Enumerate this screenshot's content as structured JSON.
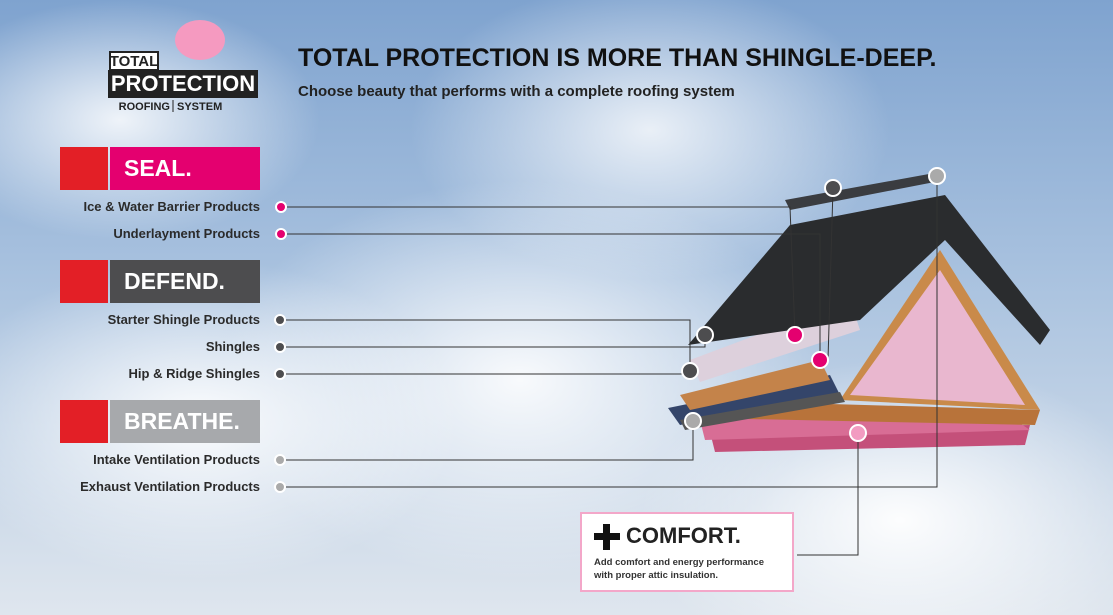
{
  "logo": {
    "top": "TOTAL",
    "main": "PROTECTION",
    "left": "ROOFING",
    "right": "SYSTEM"
  },
  "header": {
    "title": "TOTAL PROTECTION IS MORE THAN SHINGLE-DEEP.",
    "subtitle": "Choose beauty that performs with a complete roofing system"
  },
  "sections": [
    {
      "heading": "SEAL.",
      "items": [
        "Ice & Water Barrier Products",
        "Underlayment Products"
      ]
    },
    {
      "heading": "DEFEND.",
      "items": [
        "Starter Shingle Products",
        "Shingles",
        "Hip & Ridge Shingles"
      ]
    },
    {
      "heading": "BREATHE.",
      "items": [
        "Intake Ventilation Products",
        "Exhaust Ventilation Products"
      ]
    }
  ],
  "comfort": {
    "heading": "COMFORT.",
    "lines": [
      "Add comfort and energy performance",
      "with proper attic insulation."
    ]
  }
}
